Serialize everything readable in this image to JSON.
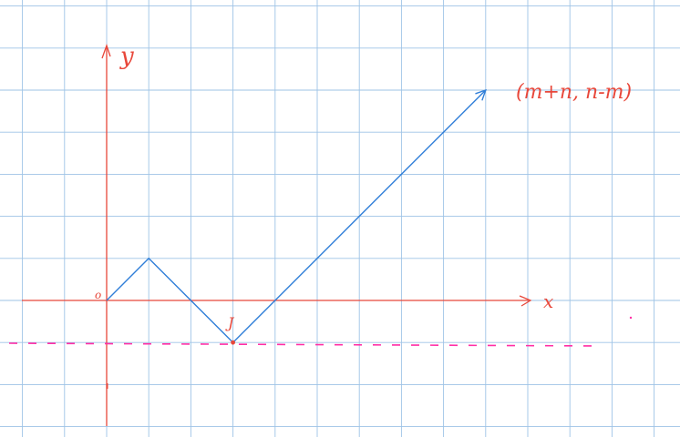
{
  "labels": {
    "y_axis": "y",
    "x_axis": "x",
    "origin": "o",
    "point_j": "J",
    "endpoint": "(m+n, n-m)"
  },
  "colors": {
    "grid": "#9ec3e6",
    "axis": "#e8473a",
    "path": "#2f7ed8",
    "dashed_line": "#ff2fa6",
    "label_red": "#e8473a"
  },
  "path_points": [
    [
      0,
      0
    ],
    [
      1,
      1
    ],
    [
      3,
      -1
    ],
    [
      9,
      5
    ]
  ],
  "dashed_line_y": -1
}
